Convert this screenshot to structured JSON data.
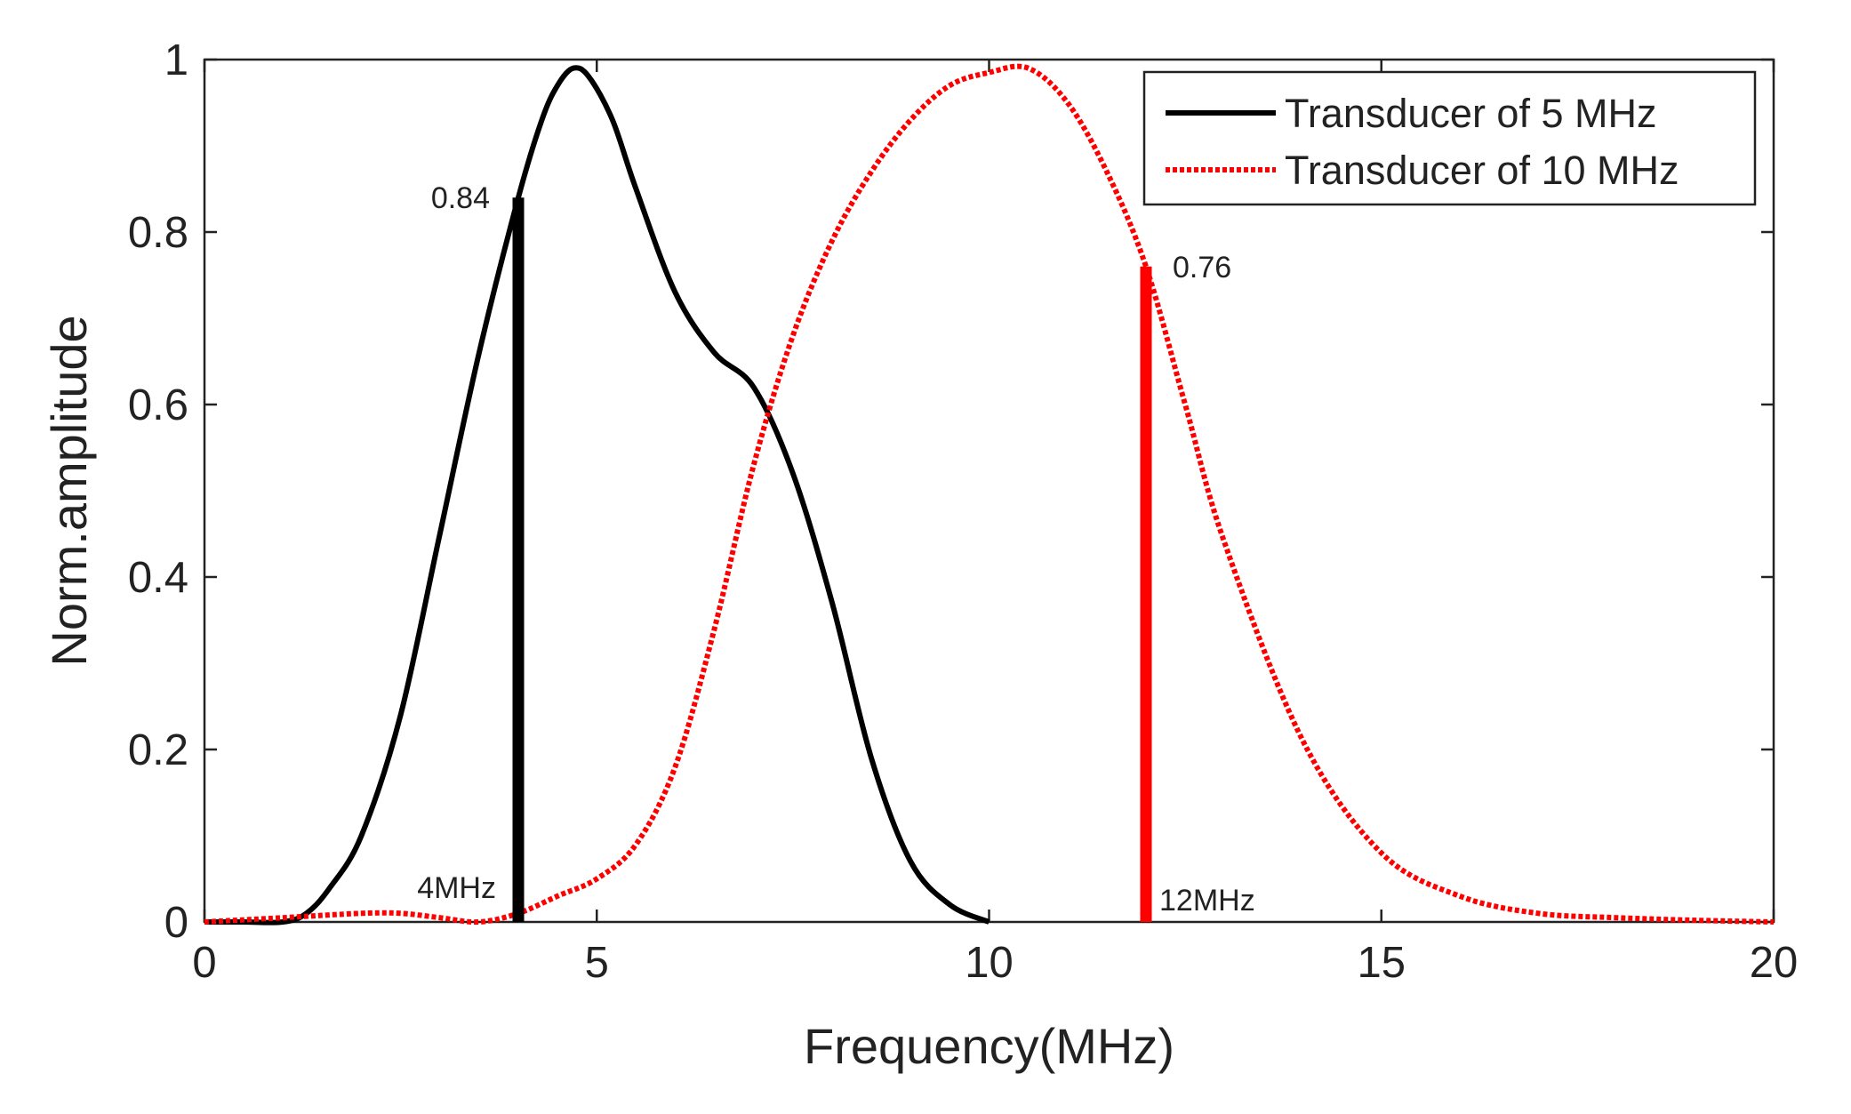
{
  "chart_data": {
    "type": "line",
    "title": "",
    "xlabel": "Frequency(MHz)",
    "ylabel": "Norm.amplitude",
    "xlim": [
      0,
      20
    ],
    "ylim": [
      0,
      1
    ],
    "xticks": [
      0,
      5,
      10,
      15,
      20
    ],
    "yticks": [
      0,
      0.2,
      0.4,
      0.6,
      0.8,
      1
    ],
    "xtick_labels": [
      "0",
      "5",
      "10",
      "15",
      "20"
    ],
    "ytick_labels": [
      "0",
      "0.2",
      "0.4",
      "0.6",
      "0.8",
      "1"
    ],
    "grid": false,
    "legend_position": "top-right",
    "series": [
      {
        "name": "Transducer of 5 MHz",
        "color": "#000000",
        "style": "solid",
        "x": [
          0,
          0.5,
          1.0,
          1.3,
          1.6,
          2.0,
          2.5,
          3.0,
          3.5,
          4.0,
          4.3,
          4.5,
          4.7,
          4.9,
          5.2,
          5.5,
          6.0,
          6.5,
          7.0,
          7.5,
          8.0,
          8.5,
          9.0,
          9.5,
          10.0
        ],
        "y": [
          0,
          0,
          0,
          0.01,
          0.04,
          0.1,
          0.24,
          0.45,
          0.66,
          0.84,
          0.93,
          0.97,
          0.99,
          0.98,
          0.93,
          0.85,
          0.73,
          0.66,
          0.62,
          0.52,
          0.37,
          0.19,
          0.07,
          0.02,
          0
        ]
      },
      {
        "name": "Transducer of 10 MHz",
        "color": "#ff0000",
        "style": "dotted",
        "x": [
          0,
          1,
          2,
          2.5,
          3,
          3.5,
          4,
          4.5,
          5,
          5.5,
          6,
          6.5,
          7,
          7.5,
          8,
          8.5,
          9,
          9.5,
          10,
          10.5,
          11,
          11.5,
          12,
          12.5,
          13,
          14,
          15,
          16,
          17,
          18,
          19,
          20
        ],
        "y": [
          0,
          0.005,
          0.01,
          0.01,
          0.005,
          0,
          0.01,
          0.03,
          0.05,
          0.09,
          0.18,
          0.34,
          0.53,
          0.68,
          0.79,
          0.87,
          0.93,
          0.97,
          0.985,
          0.99,
          0.95,
          0.87,
          0.76,
          0.6,
          0.44,
          0.21,
          0.08,
          0.03,
          0.01,
          0.005,
          0.002,
          0
        ]
      }
    ],
    "markers": [
      {
        "x": 4,
        "y": 0.84,
        "color": "#000000",
        "label": "0.84",
        "freq_label": "4MHz"
      },
      {
        "x": 12,
        "y": 0.76,
        "color": "#ff0000",
        "label": "0.76",
        "freq_label": "12MHz"
      }
    ]
  }
}
